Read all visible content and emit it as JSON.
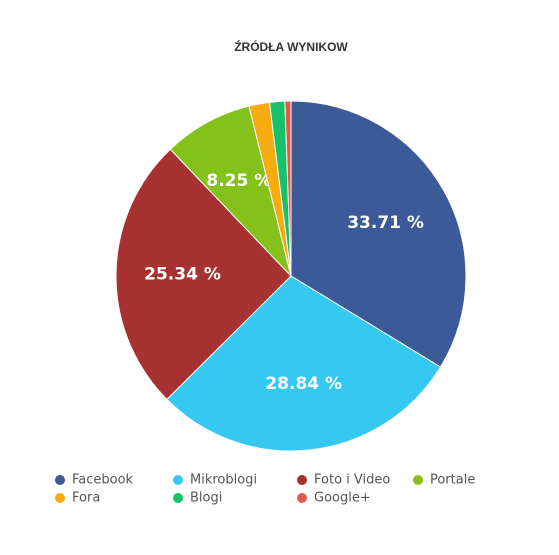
{
  "chart_data": {
    "type": "pie",
    "title": "ŹRÓDŁA WYNIKOW",
    "categories": [
      "Facebook",
      "Mikroblogi",
      "Foto i Video",
      "Portale",
      "Fora",
      "Blogi",
      "Google+"
    ],
    "values": [
      33.71,
      28.84,
      25.34,
      8.25,
      1.9,
      1.4,
      0.56
    ],
    "value_labels": [
      "33.71 %",
      "28.84 %",
      "25.34 %",
      "8.25 %",
      null,
      null,
      null
    ],
    "colors": [
      "#3d5a98",
      "#35c8f0",
      "#a83232",
      "#84c11a",
      "#f5ac0e",
      "#17c069",
      "#e0594b"
    ]
  }
}
